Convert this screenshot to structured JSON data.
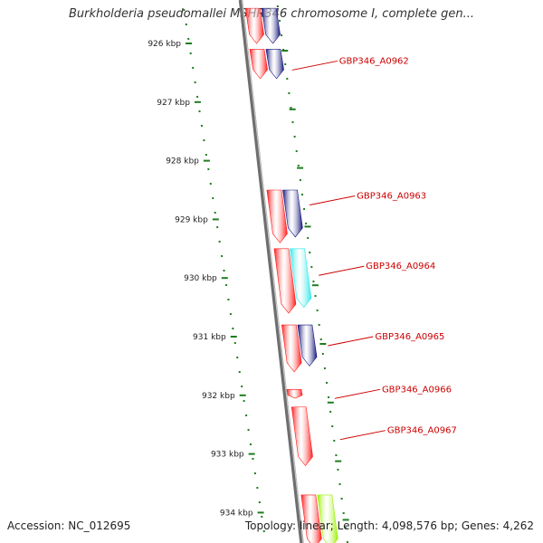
{
  "title": "Burkholderia pseudomallei MSHR346 chromosome I, complete gen...",
  "footer": {
    "accession": "Accession: NC_012695",
    "summary": "Topology: linear; Length: 4,098,576 bp; Genes: 4,262"
  },
  "colors": {
    "backbone": "#8c8c8c",
    "tick": "#1e7d1e",
    "label": "#cc0000",
    "forward_gene": "#ff1a1a",
    "navy_gene": "#13137a",
    "cyan_gene": "#33e8e8",
    "lime_gene": "#99f000"
  },
  "scale": {
    "unit": "kbp",
    "ticks": [
      {
        "kbp": 926,
        "label": "926 kbp"
      },
      {
        "kbp": 927,
        "label": "927 kbp"
      },
      {
        "kbp": 928,
        "label": "928 kbp"
      },
      {
        "kbp": 929,
        "label": "929 kbp"
      },
      {
        "kbp": 930,
        "label": "930 kbp"
      },
      {
        "kbp": 931,
        "label": "931 kbp"
      },
      {
        "kbp": 932,
        "label": "932 kbp"
      },
      {
        "kbp": 933,
        "label": "933 kbp"
      },
      {
        "kbp": 934,
        "label": "934 kbp"
      }
    ]
  },
  "gene_labels": [
    {
      "text": "GBP346_A0962",
      "kbp": 926.3
    },
    {
      "text": "GBP346_A0963",
      "kbp": 928.6
    },
    {
      "text": "GBP346_A0964",
      "kbp": 929.8
    },
    {
      "text": "GBP346_A0965",
      "kbp": 931.0
    },
    {
      "text": "GBP346_A0966",
      "kbp": 931.9
    },
    {
      "text": "GBP346_A0967",
      "kbp": 932.6
    }
  ],
  "features": [
    {
      "kbp_start": 925.4,
      "kbp_end": 926.0,
      "lane": 0,
      "color": "forward_gene",
      "dir": "+"
    },
    {
      "kbp_start": 925.4,
      "kbp_end": 926.0,
      "lane": 1,
      "color": "navy_gene",
      "dir": "+"
    },
    {
      "kbp_start": 926.1,
      "kbp_end": 926.6,
      "lane": 0,
      "color": "forward_gene",
      "dir": "+"
    },
    {
      "kbp_start": 926.1,
      "kbp_end": 926.6,
      "lane": 1,
      "color": "navy_gene",
      "dir": "+"
    },
    {
      "kbp_start": 928.5,
      "kbp_end": 929.4,
      "lane": 0,
      "color": "forward_gene",
      "dir": "+"
    },
    {
      "kbp_start": 928.5,
      "kbp_end": 929.3,
      "lane": 1,
      "color": "navy_gene",
      "dir": "+"
    },
    {
      "kbp_start": 929.5,
      "kbp_end": 930.6,
      "lane": 0,
      "color": "forward_gene",
      "dir": "+"
    },
    {
      "kbp_start": 929.5,
      "kbp_end": 930.5,
      "lane": 1,
      "color": "cyan_gene",
      "dir": "+"
    },
    {
      "kbp_start": 930.8,
      "kbp_end": 931.6,
      "lane": 0,
      "color": "forward_gene",
      "dir": "+"
    },
    {
      "kbp_start": 930.8,
      "kbp_end": 931.5,
      "lane": 1,
      "color": "navy_gene",
      "dir": "+"
    },
    {
      "kbp_start": 931.9,
      "kbp_end": 932.05,
      "lane": 0,
      "color": "forward_gene",
      "dir": "+"
    },
    {
      "kbp_start": 932.2,
      "kbp_end": 933.2,
      "lane": 0,
      "color": "forward_gene",
      "dir": "+"
    },
    {
      "kbp_start": 933.7,
      "kbp_end": 934.6,
      "lane": 0,
      "color": "forward_gene",
      "dir": "+"
    },
    {
      "kbp_start": 933.7,
      "kbp_end": 934.6,
      "lane": 1,
      "color": "lime_gene",
      "dir": "+"
    }
  ]
}
